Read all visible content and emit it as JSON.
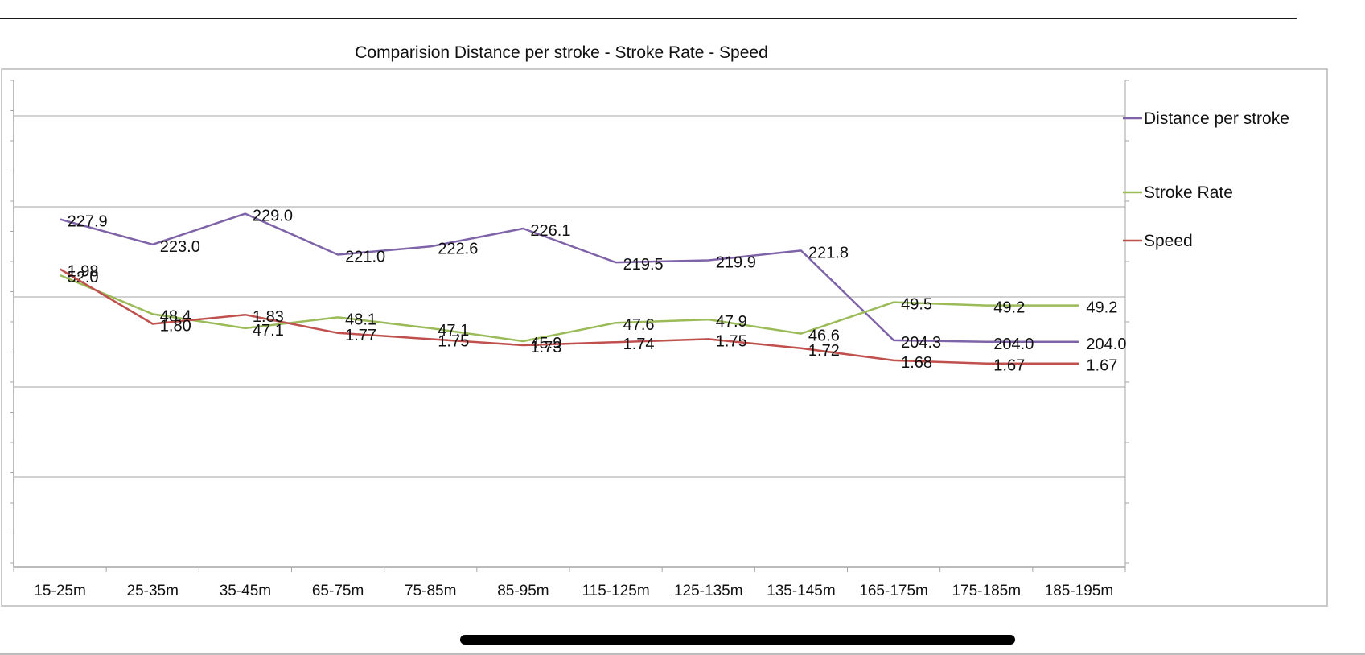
{
  "chart_data": {
    "type": "line",
    "title": "Comparision  Distance per stroke - Stroke Rate - Speed",
    "xlabel": "",
    "ylabel": "",
    "categories": [
      "15-25m",
      "25-35m",
      "35-45m",
      "65-75m",
      "75-85m",
      "85-95m",
      "115-125m",
      "125-135m",
      "135-145m",
      "165-175m",
      "175-185m",
      "185-195m"
    ],
    "series": [
      {
        "name": "Distance per stroke",
        "color": "#7e63a9",
        "values": [
          227.9,
          223.0,
          229.0,
          221.0,
          222.6,
          226.1,
          219.5,
          219.9,
          221.8,
          204.3,
          204.0,
          204.0
        ],
        "labels": [
          "227.9",
          "223.0",
          "229.0",
          "221.0",
          "222.6",
          "226.1",
          "219.5",
          "219.9",
          "221.8",
          "204.3",
          "204.0",
          "204.0"
        ]
      },
      {
        "name": "Stroke Rate",
        "color": "#9bbb59",
        "values": [
          52.0,
          48.4,
          47.1,
          48.1,
          47.1,
          45.9,
          47.6,
          47.9,
          46.6,
          49.5,
          49.2,
          49.2
        ],
        "labels": [
          "52.0",
          "48.4",
          "47.1",
          "48.1",
          "47.1",
          "45.9",
          "47.6",
          "47.9",
          "46.6",
          "49.5",
          "49.2",
          "49.2"
        ]
      },
      {
        "name": "Speed",
        "color": "#c0504d",
        "values": [
          1.98,
          1.8,
          1.83,
          1.77,
          1.75,
          1.73,
          1.74,
          1.75,
          1.72,
          1.68,
          1.67,
          1.67
        ],
        "labels": [
          "1.98",
          "1.80",
          "1.83",
          "1.77",
          "1.75",
          "1.73",
          "1.74",
          "1.75",
          "1.72",
          "1.68",
          "1.67",
          "1.67"
        ]
      }
    ],
    "grid": true,
    "legend": "right"
  }
}
